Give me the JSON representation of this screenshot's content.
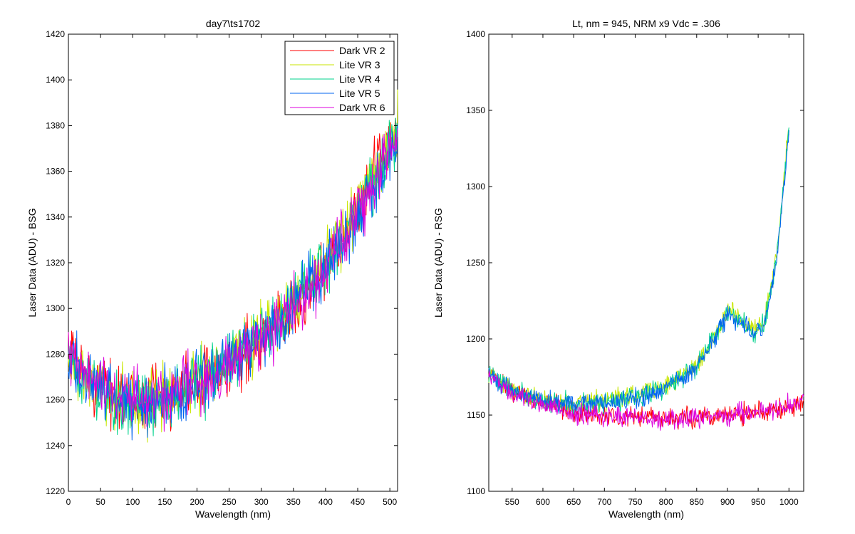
{
  "chart_data": [
    {
      "type": "line",
      "title": "day7\\ts1702",
      "xlabel": "Wavelength (nm)",
      "ylabel": "Laser Data (ADU) - BSG",
      "xlim": [
        0,
        512
      ],
      "ylim": [
        1220,
        1420
      ],
      "xticks": [
        0,
        50,
        100,
        150,
        200,
        250,
        300,
        350,
        400,
        450,
        500
      ],
      "yticks": [
        1220,
        1240,
        1260,
        1280,
        1300,
        1320,
        1340,
        1360,
        1380,
        1400,
        1420
      ],
      "grid": false,
      "legend": {
        "position": "top-right",
        "entries": [
          "Dark VR 2",
          "Lite VR 3",
          "Lite VR 4",
          "Lite VR 5",
          "Dark VR 6"
        ]
      },
      "series": [
        {
          "name": "Dark VR 2",
          "color": "#ff0000",
          "x": [
            0,
            50,
            100,
            150,
            200,
            250,
            300,
            350,
            400,
            450,
            500,
            512
          ],
          "y": [
            1278,
            1266,
            1259,
            1262,
            1268,
            1276,
            1287,
            1300,
            1318,
            1342,
            1374,
            1382
          ]
        },
        {
          "name": "Lite VR 3",
          "color": "#c8e600",
          "x": [
            0,
            50,
            100,
            150,
            200,
            250,
            300,
            350,
            400,
            450,
            500,
            512
          ],
          "y": [
            1276,
            1264,
            1258,
            1261,
            1268,
            1278,
            1289,
            1302,
            1320,
            1344,
            1370,
            1380
          ]
        },
        {
          "name": "Lite VR 4",
          "color": "#00d28c",
          "x": [
            0,
            50,
            100,
            150,
            200,
            250,
            300,
            350,
            400,
            450,
            500,
            512
          ],
          "y": [
            1275,
            1263,
            1257,
            1260,
            1267,
            1277,
            1288,
            1301,
            1319,
            1343,
            1368,
            1378
          ]
        },
        {
          "name": "Lite VR 5",
          "color": "#0064f0",
          "x": [
            0,
            50,
            100,
            150,
            200,
            250,
            300,
            350,
            400,
            450,
            500,
            512
          ],
          "y": [
            1277,
            1265,
            1258,
            1261,
            1268,
            1277,
            1288,
            1301,
            1318,
            1342,
            1366,
            1376
          ]
        },
        {
          "name": "Dark VR 6",
          "color": "#dc00dc",
          "x": [
            0,
            50,
            100,
            150,
            200,
            250,
            300,
            350,
            400,
            450,
            500,
            512
          ],
          "y": [
            1278,
            1266,
            1259,
            1262,
            1268,
            1276,
            1287,
            1300,
            1318,
            1341,
            1370,
            1380
          ]
        }
      ]
    },
    {
      "type": "line",
      "title": "Lt, nm = 945, NRM x9 Vdc = .306",
      "xlabel": "Wavelength (nm)",
      "ylabel": "Laser Data (ADU) - RSG",
      "xlim": [
        512,
        1024
      ],
      "ylim": [
        1100,
        1400
      ],
      "xticks": [
        550,
        600,
        650,
        700,
        750,
        800,
        850,
        900,
        950,
        1000
      ],
      "yticks": [
        1100,
        1150,
        1200,
        1250,
        1300,
        1350,
        1400
      ],
      "grid": false,
      "series": [
        {
          "name": "Dark VR 2",
          "color": "#ff0000",
          "x": [
            512,
            550,
            600,
            650,
            700,
            750,
            800,
            850,
            900,
            950,
            1000,
            1024
          ],
          "y": [
            1178,
            1166,
            1158,
            1152,
            1150,
            1149,
            1148,
            1149,
            1150,
            1152,
            1155,
            1160
          ]
        },
        {
          "name": "Lite VR 3",
          "color": "#c8e600",
          "x": [
            512,
            550,
            600,
            650,
            700,
            750,
            800,
            850,
            880,
            900,
            920,
            940,
            960,
            980,
            1000
          ],
          "y": [
            1178,
            1167,
            1160,
            1158,
            1160,
            1163,
            1170,
            1183,
            1203,
            1218,
            1215,
            1207,
            1212,
            1255,
            1340
          ]
        },
        {
          "name": "Lite VR 4",
          "color": "#00d28c",
          "x": [
            512,
            550,
            600,
            650,
            700,
            750,
            800,
            850,
            880,
            900,
            920,
            940,
            960,
            980,
            1000
          ],
          "y": [
            1177,
            1166,
            1159,
            1157,
            1159,
            1162,
            1169,
            1182,
            1202,
            1216,
            1213,
            1205,
            1210,
            1252,
            1338
          ]
        },
        {
          "name": "Lite VR 5",
          "color": "#0064f0",
          "x": [
            512,
            550,
            600,
            650,
            700,
            750,
            800,
            850,
            880,
            900,
            920,
            940,
            960,
            980,
            1000
          ],
          "y": [
            1178,
            1166,
            1159,
            1157,
            1158,
            1161,
            1168,
            1181,
            1201,
            1215,
            1212,
            1204,
            1209,
            1250,
            1336
          ]
        },
        {
          "name": "Dark VR 6",
          "color": "#dc00dc",
          "x": [
            512,
            550,
            600,
            650,
            700,
            750,
            800,
            850,
            900,
            950,
            1000,
            1024
          ],
          "y": [
            1177,
            1165,
            1157,
            1151,
            1149,
            1148,
            1147,
            1148,
            1150,
            1152,
            1156,
            1161
          ]
        }
      ]
    }
  ]
}
